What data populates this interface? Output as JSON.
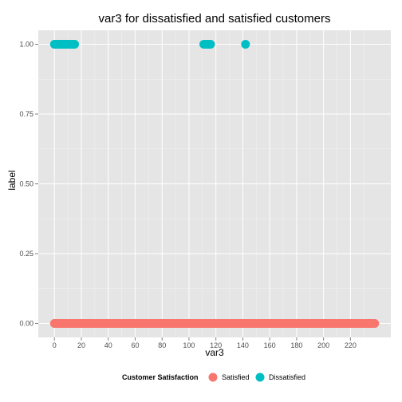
{
  "chart_data": {
    "type": "scatter",
    "title": "var3 for dissatisfied and satisfied customers",
    "xlabel": "var3",
    "ylabel": "label",
    "xlim": [
      -12,
      250
    ],
    "ylim": [
      -0.05,
      1.05
    ],
    "x_ticks": [
      0,
      20,
      40,
      60,
      80,
      100,
      120,
      140,
      160,
      180,
      200,
      220
    ],
    "y_ticks": [
      "0.00",
      "0.25",
      "0.50",
      "0.75",
      "1.00"
    ],
    "grid": true,
    "legend": {
      "title": "Customer Satisfaction",
      "placement": "bottom",
      "entries": [
        "Satisfied",
        "Dissatisfied"
      ]
    },
    "series": [
      {
        "name": "Satisfied",
        "color": "#f8766d",
        "y": 0,
        "x_range": [
          0,
          238
        ]
      },
      {
        "name": "Dissatisfied",
        "color": "#00bfc4",
        "y": 1,
        "x_values": [
          0,
          1,
          2,
          3,
          4,
          5,
          6,
          7,
          8,
          9,
          10,
          11,
          12,
          13,
          14,
          15,
          111,
          112,
          113,
          114,
          115,
          116,
          142
        ]
      }
    ]
  }
}
